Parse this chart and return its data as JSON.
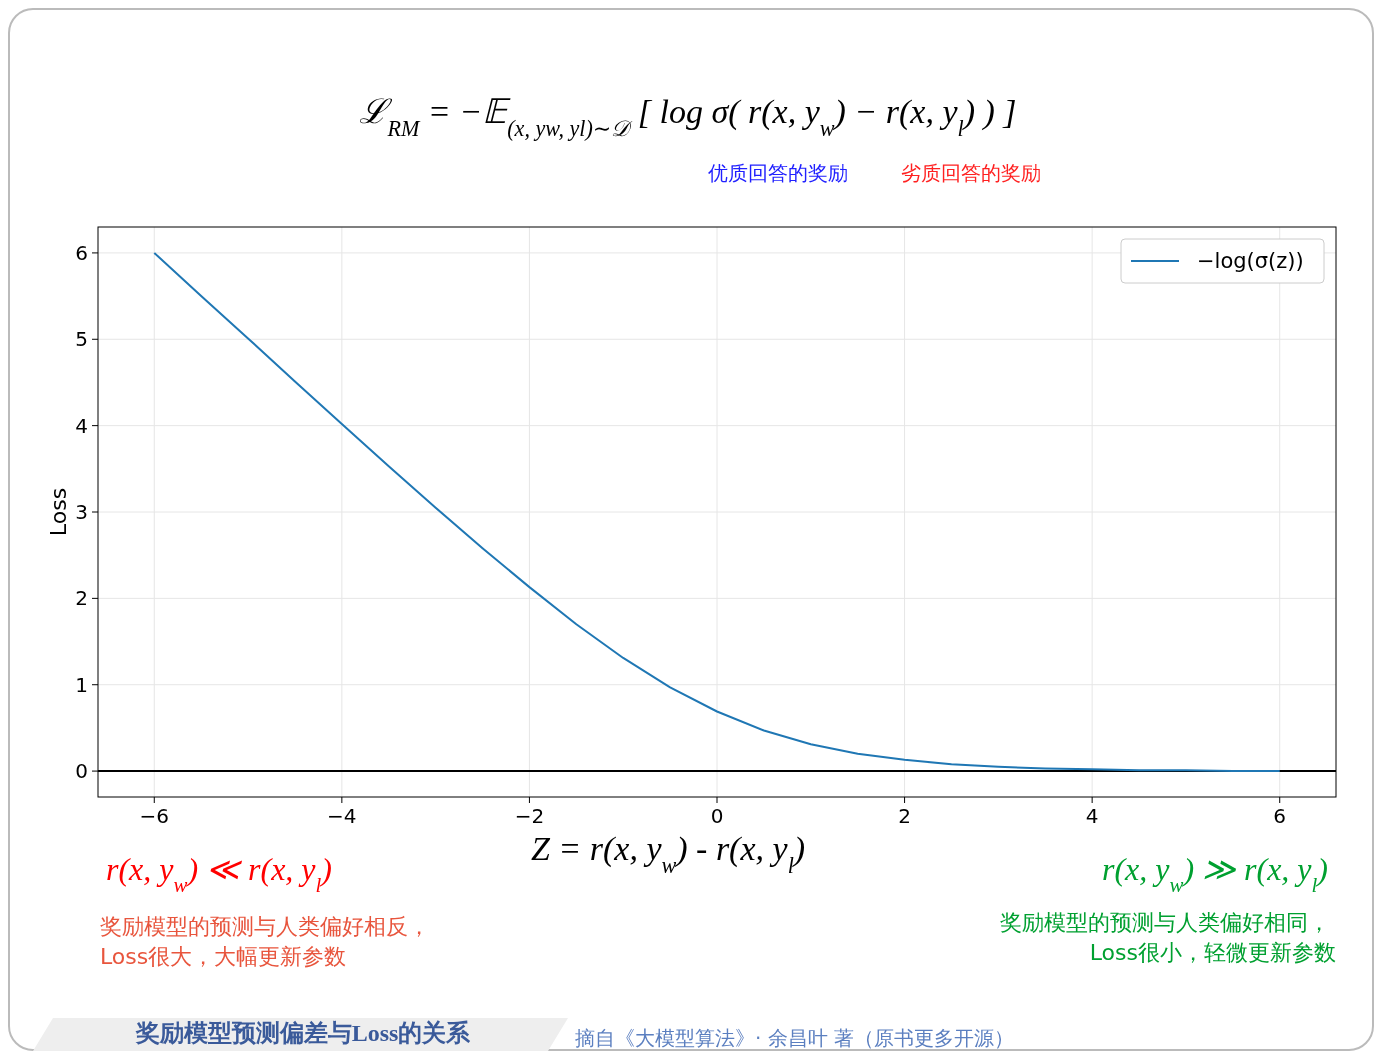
{
  "chart_data": {
    "type": "line",
    "title": "ℒ$_{RM}$ = −𝔼$_{(x, y}$$_{w}$$_{, y}$$_{l}$$_{)∼𝒟}$ [ log σ( r(x, y$_{w}$) − r(x, y$_{l}$) ) ]",
    "xlabel": "Z = r(x, y$_{w}$) - r(x, y$_{l}$)",
    "ylabel": "Loss",
    "x": [
      -6,
      -5.5,
      -5,
      -4.5,
      -4,
      -3.5,
      -3,
      -2.5,
      -2,
      -1.5,
      -1,
      -0.5,
      0,
      0.5,
      1,
      1.5,
      2,
      2.5,
      3,
      3.5,
      4,
      4.5,
      5,
      5.5,
      6
    ],
    "series": [
      {
        "name": "−log(σ(z))",
        "color": "#1f77b4",
        "values": [
          6.0,
          5.5,
          5.01,
          4.51,
          4.02,
          3.53,
          3.05,
          2.58,
          2.13,
          1.7,
          1.31,
          0.97,
          0.69,
          0.47,
          0.31,
          0.2,
          0.13,
          0.08,
          0.05,
          0.03,
          0.02,
          0.01,
          0.01,
          0,
          0
        ]
      }
    ],
    "xlim": [
      -6.6,
      6.6
    ],
    "ylim": [
      -0.3,
      6.3
    ],
    "xticks": [
      {
        "value": -6,
        "label": "−6"
      },
      {
        "value": -4,
        "label": "−4"
      },
      {
        "value": -2,
        "label": "−2"
      },
      0,
      2,
      4,
      6
    ],
    "yticks": [
      0,
      1,
      2,
      3,
      4,
      5,
      6
    ],
    "ref_lines": [
      {
        "axis": "y",
        "value": 0,
        "color": "#000000"
      }
    ],
    "grid": true,
    "legend": "top right",
    "line_style": "solid",
    "marker": "none",
    "annotations": [
      "优质回答的奖励",
      "劣质回答的奖励",
      "r(x, y$_{w}$) ≪ r(x, y$_{l}$)",
      "奖励模型的预测与人类偏好相反，",
      "Loss很大，大幅更新参数",
      "r(x, y$_{w}$) ≫ r(x, y$_{l}$)",
      "奖励模型的预测与人类偏好相同，",
      "Loss很小，轻微更新参数",
      "奖励模型预测偏差与Loss的关系",
      "摘自《大模型算法》· 余昌叶 著（原书更多开源）"
    ]
  }
}
